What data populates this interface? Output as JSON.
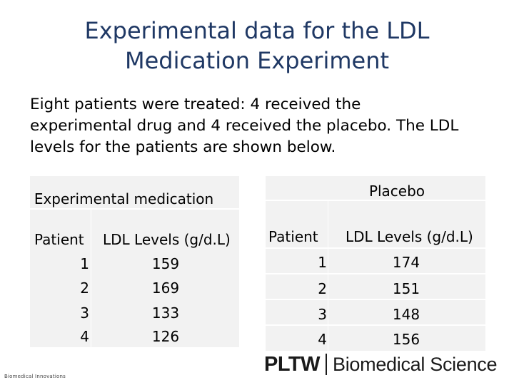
{
  "title": {
    "line1": "Experimental data for the LDL",
    "line2": "Medication Experiment"
  },
  "intro": {
    "line1": "Eight patients were treated: 4 received the",
    "line2": "experimental drug and 4 received the placebo. The LDL",
    "line3": "levels for the patients are shown below."
  },
  "experimental": {
    "heading": "Experimental medication",
    "col_patient": "Patient",
    "col_ldl": "LDL Levels (g/d.L)",
    "rows": [
      {
        "patient": "1",
        "ldl": "159"
      },
      {
        "patient": "2",
        "ldl": "169"
      },
      {
        "patient": "3",
        "ldl": "133"
      },
      {
        "patient": "4",
        "ldl": "126"
      }
    ]
  },
  "placebo": {
    "heading": "Placebo",
    "col_patient": "Patient",
    "col_ldl": "LDL Levels (g/d.L)",
    "rows": [
      {
        "patient": "1",
        "ldl": "174"
      },
      {
        "patient": "2",
        "ldl": "151"
      },
      {
        "patient": "3",
        "ldl": "148"
      },
      {
        "patient": "4",
        "ldl": "156"
      }
    ]
  },
  "footer": {
    "left": "Biomedical Innovations",
    "logo_mark": "PLTW",
    "logo_text": "Biomedical Science"
  },
  "colors": {
    "title": "#1f3864",
    "table_fill": "#f2f2f2"
  }
}
